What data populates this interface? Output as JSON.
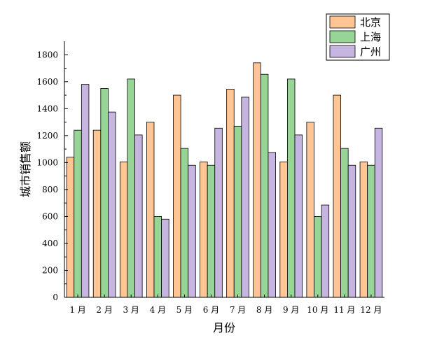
{
  "chart_data": {
    "type": "bar",
    "title": "",
    "xlabel": "月份",
    "ylabel": "城市销售额",
    "categories": [
      "1 月",
      "2 月",
      "3 月",
      "4 月",
      "5 月",
      "6 月",
      "7 月",
      "8 月",
      "9 月",
      "10 月",
      "11 月",
      "12 月"
    ],
    "series": [
      {
        "name": "北京",
        "color": "#ffc594",
        "values": [
          1040,
          1240,
          1005,
          1300,
          1500,
          1005,
          1545,
          1740,
          1005,
          1300,
          1500,
          1005
        ]
      },
      {
        "name": "上海",
        "color": "#96d596",
        "values": [
          1240,
          1550,
          1620,
          600,
          1105,
          980,
          1270,
          1655,
          1620,
          600,
          1105,
          980
        ]
      },
      {
        "name": "广州",
        "color": "#c6b5e0",
        "values": [
          1580,
          1375,
          1205,
          580,
          980,
          1255,
          1485,
          1075,
          1205,
          685,
          980,
          1255
        ]
      }
    ],
    "ylim": [
      0,
      1900
    ],
    "yticks": [
      0,
      200,
      400,
      600,
      800,
      1000,
      1200,
      1400,
      1600,
      1800
    ],
    "grid": false,
    "legend": "top-right"
  }
}
